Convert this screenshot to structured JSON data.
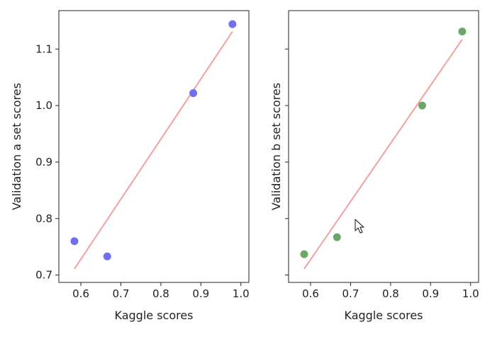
{
  "chart_data": [
    {
      "type": "scatter",
      "xlabel": "Kaggle scores",
      "ylabel": "Validation a set scores",
      "xlim": [
        0.545,
        1.02
      ],
      "ylim": [
        0.687,
        1.168
      ],
      "xticks": [
        0.6,
        0.7,
        0.8,
        0.9,
        1.0
      ],
      "xtick_labels": [
        "0.6",
        "0.7",
        "0.8",
        "0.9",
        "1.0"
      ],
      "yticks": [
        0.7,
        0.8,
        0.9,
        1.0,
        1.1
      ],
      "ytick_labels": [
        "0.7",
        "0.8",
        "0.9",
        "1.0",
        "1.1"
      ],
      "points": {
        "x": [
          0.584,
          0.666,
          0.881,
          0.979
        ],
        "y": [
          0.76,
          0.733,
          1.022,
          1.144
        ],
        "color": "#6f6ff0"
      },
      "fit_line": {
        "x": [
          0.584,
          0.979
        ],
        "y": [
          0.711,
          1.131
        ],
        "color": "#f2a0a0"
      },
      "grid": false
    },
    {
      "type": "scatter",
      "xlabel": "Kaggle scores",
      "ylabel": "Validation b set scores",
      "xlim": [
        0.545,
        1.02
      ],
      "ylim": [
        0.687,
        1.168
      ],
      "xticks": [
        0.6,
        0.7,
        0.8,
        0.9,
        1.0
      ],
      "xtick_labels": [
        "0.6",
        "0.7",
        "0.8",
        "0.9",
        "1.0"
      ],
      "yticks": [
        0.7,
        0.8,
        0.9,
        1.0,
        1.1
      ],
      "ytick_labels": [],
      "points": {
        "x": [
          0.584,
          0.666,
          0.879,
          0.979
        ],
        "y": [
          0.737,
          0.767,
          1.0,
          1.131
        ],
        "color": "#6aa86a"
      },
      "fit_line": {
        "x": [
          0.584,
          0.979
        ],
        "y": [
          0.711,
          1.117
        ],
        "color": "#f2a0a0"
      },
      "grid": false
    }
  ],
  "cursor": {
    "icon": "mouse-pointer-icon"
  }
}
